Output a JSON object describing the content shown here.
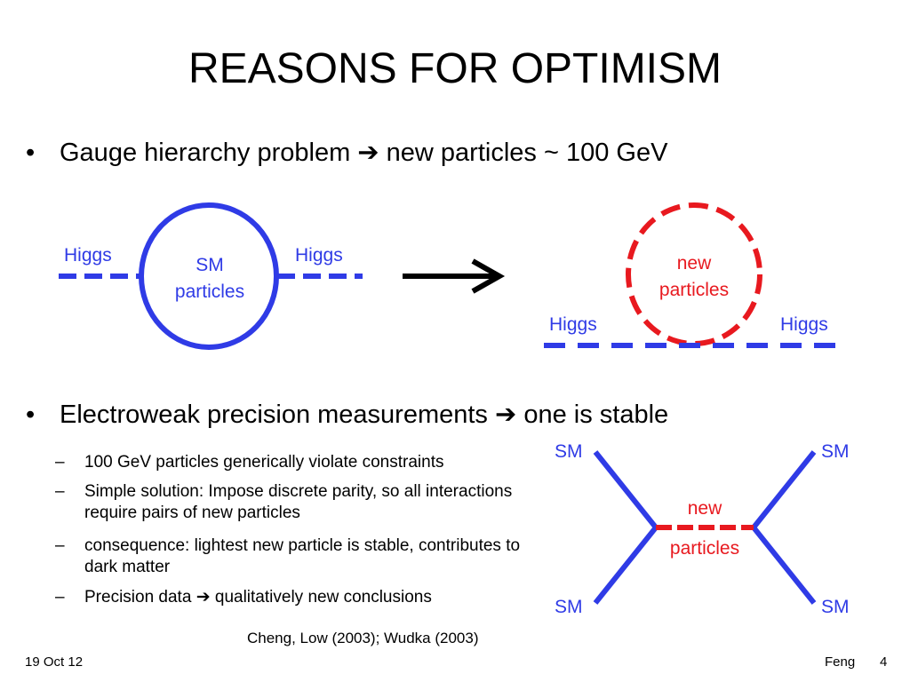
{
  "slide": {
    "title": "REASONS FOR OPTIMISM",
    "bullets": [
      {
        "marker": "•",
        "text_before": "Gauge hierarchy problem ",
        "arrow": "➔",
        "text_after": " new particles ~ 100 GeV"
      },
      {
        "marker": "•",
        "text_before": "Electroweak precision measurements ",
        "arrow": "➔",
        "text_after": " one is stable"
      }
    ],
    "sub_bullets": [
      {
        "marker": "–",
        "text": "100 GeV particles generically violate constraints"
      },
      {
        "marker": "–",
        "text": "Simple solution: Impose discrete parity, so all interactions require pairs of new particles"
      },
      {
        "marker": "–",
        "text": "consequence: lightest new particle is stable, contributes to dark matter"
      },
      {
        "marker": "–",
        "text_before": "Precision data ",
        "arrow": "➔",
        "text_after": " qualitatively new conclusions"
      }
    ],
    "citation": "Cheng, Low (2003); Wudka (2003)",
    "footer": {
      "date": "19 Oct 12",
      "author": "Feng",
      "page": "4"
    }
  },
  "diagrams": {
    "loop_sm": {
      "left_label": "Higgs",
      "right_label": "Higgs",
      "center_line1": "SM",
      "center_line2": "particles"
    },
    "loop_new": {
      "left_label": "Higgs",
      "right_label": "Higgs",
      "center_line1": "new",
      "center_line2": "particles"
    },
    "scattering": {
      "top_left": "SM",
      "top_right": "SM",
      "bottom_left": "SM",
      "bottom_right": "SM",
      "middle_line1": "new",
      "middle_line2": "particles"
    }
  },
  "colors": {
    "blue": "#2f3be6",
    "red": "#e8191f",
    "black": "#000000"
  }
}
